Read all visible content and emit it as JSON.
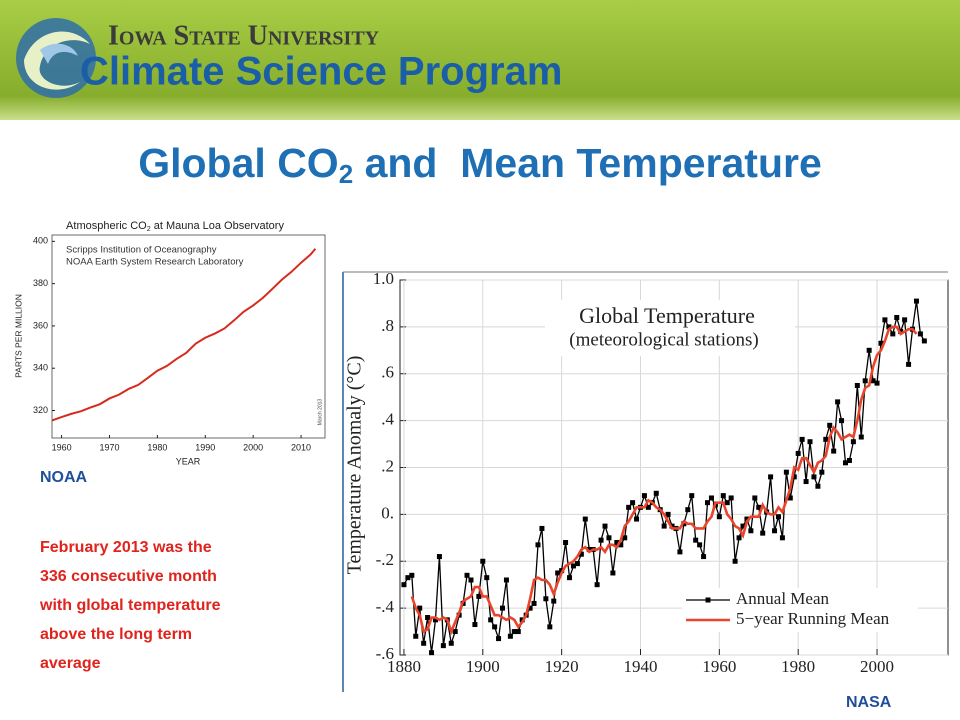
{
  "header": {
    "university": "Iowa State University",
    "program": "Climate Science Program"
  },
  "title": {
    "before": "Global CO",
    "sub": "2",
    "after": " and  Mean Temperature"
  },
  "left_source": "NOAA",
  "note_lines": [
    "February 2013 was the",
    "336 consecutive month",
    "with global temperature",
    "above the long term",
    "average"
  ],
  "right_source": "NASA",
  "chart_data": [
    {
      "type": "line",
      "title": {
        "before": "Atmospheric CO",
        "sub": "2",
        "after": " at Mauna Loa Observatory"
      },
      "sources": [
        "Scripps Institution of Oceanography",
        "NOAA Earth System Research Laboratory"
      ],
      "stamp": "March 2013",
      "x_label": "YEAR",
      "y_label": "PARTS PER MILLION",
      "x": [
        1958,
        1960,
        1962,
        1964,
        1966,
        1968,
        1970,
        1972,
        1974,
        1976,
        1978,
        1980,
        1982,
        1984,
        1986,
        1988,
        1990,
        1992,
        1994,
        1996,
        1998,
        2000,
        2002,
        2004,
        2006,
        2008,
        2010,
        2012,
        2013
      ],
      "values": [
        315.3,
        316.9,
        318.4,
        319.6,
        321.4,
        323.0,
        325.7,
        327.5,
        330.2,
        332.1,
        335.4,
        338.8,
        341.1,
        344.4,
        347.2,
        351.6,
        354.4,
        356.4,
        358.8,
        362.6,
        366.7,
        369.7,
        373.2,
        377.5,
        381.9,
        385.6,
        389.9,
        393.8,
        396.5
      ],
      "color": "#d62a1e",
      "xlim": [
        1958,
        2015
      ],
      "ylim": [
        307,
        403
      ],
      "xticks": [
        1960,
        1970,
        1980,
        1990,
        2000,
        2010
      ],
      "yticks": [
        320,
        340,
        360,
        380,
        400
      ],
      "grid": false
    },
    {
      "type": "line",
      "title": "Global Temperature",
      "subtitle": "(meteorological stations)",
      "y_label": "Temperature Anomaly (°C)",
      "x": [
        1880,
        1881,
        1882,
        1883,
        1884,
        1885,
        1886,
        1887,
        1888,
        1889,
        1890,
        1891,
        1892,
        1893,
        1894,
        1895,
        1896,
        1897,
        1898,
        1899,
        1900,
        1901,
        1902,
        1903,
        1904,
        1905,
        1906,
        1907,
        1908,
        1909,
        1910,
        1911,
        1912,
        1913,
        1914,
        1915,
        1916,
        1917,
        1918,
        1919,
        1920,
        1921,
        1922,
        1923,
        1924,
        1925,
        1926,
        1927,
        1928,
        1929,
        1930,
        1931,
        1932,
        1933,
        1934,
        1935,
        1936,
        1937,
        1938,
        1939,
        1940,
        1941,
        1942,
        1943,
        1944,
        1945,
        1946,
        1947,
        1948,
        1949,
        1950,
        1951,
        1952,
        1953,
        1954,
        1955,
        1956,
        1957,
        1958,
        1959,
        1960,
        1961,
        1962,
        1963,
        1964,
        1965,
        1966,
        1967,
        1968,
        1969,
        1970,
        1971,
        1972,
        1973,
        1974,
        1975,
        1976,
        1977,
        1978,
        1979,
        1980,
        1981,
        1982,
        1983,
        1984,
        1985,
        1986,
        1987,
        1988,
        1989,
        1990,
        1991,
        1992,
        1993,
        1994,
        1995,
        1996,
        1997,
        1998,
        1999,
        2000,
        2001,
        2002,
        2003,
        2004,
        2005,
        2006,
        2007,
        2008,
        2009,
        2010,
        2011,
        2012
      ],
      "series": [
        {
          "name": "Annual Mean",
          "color": "#000000",
          "marker": "square",
          "values": [
            -0.3,
            -0.27,
            -0.26,
            -0.52,
            -0.4,
            -0.55,
            -0.44,
            -0.59,
            -0.45,
            -0.18,
            -0.56,
            -0.45,
            -0.55,
            -0.5,
            -0.43,
            -0.38,
            -0.26,
            -0.28,
            -0.47,
            -0.35,
            -0.2,
            -0.27,
            -0.45,
            -0.48,
            -0.53,
            -0.4,
            -0.28,
            -0.52,
            -0.5,
            -0.5,
            -0.45,
            -0.43,
            -0.4,
            -0.38,
            -0.13,
            -0.06,
            -0.36,
            -0.48,
            -0.37,
            -0.25,
            -0.24,
            -0.12,
            -0.27,
            -0.22,
            -0.21,
            -0.17,
            -0.02,
            -0.15,
            -0.15,
            -0.3,
            -0.11,
            -0.05,
            -0.1,
            -0.25,
            -0.12,
            -0.13,
            -0.1,
            0.03,
            0.05,
            -0.02,
            0.03,
            0.08,
            0.03,
            0.05,
            0.09,
            0.02,
            -0.05,
            0.0,
            -0.05,
            -0.06,
            -0.16,
            -0.04,
            0.02,
            0.08,
            -0.11,
            -0.13,
            -0.18,
            0.05,
            0.07,
            0.04,
            -0.01,
            0.08,
            0.05,
            0.07,
            -0.2,
            -0.1,
            -0.05,
            -0.02,
            -0.07,
            0.07,
            0.03,
            -0.08,
            0.01,
            0.16,
            -0.07,
            -0.01,
            -0.1,
            0.18,
            0.07,
            0.16,
            0.26,
            0.32,
            0.14,
            0.31,
            0.16,
            0.12,
            0.18,
            0.32,
            0.38,
            0.27,
            0.48,
            0.4,
            0.22,
            0.23,
            0.31,
            0.55,
            0.33,
            0.57,
            0.7,
            0.57,
            0.56,
            0.73,
            0.83,
            0.8,
            0.77,
            0.84,
            0.78,
            0.83,
            0.64,
            0.79,
            0.91,
            0.77,
            0.74
          ]
        },
        {
          "name": "5−year Running Mean",
          "color": "#e8452c",
          "marker": "none",
          "values": [
            null,
            null,
            -0.35,
            -0.4,
            -0.43,
            -0.5,
            -0.49,
            -0.44,
            -0.44,
            -0.45,
            -0.44,
            -0.45,
            -0.5,
            -0.46,
            -0.42,
            -0.37,
            -0.36,
            -0.35,
            -0.31,
            -0.31,
            -0.35,
            -0.35,
            -0.39,
            -0.43,
            -0.43,
            -0.44,
            -0.45,
            -0.44,
            -0.45,
            -0.48,
            -0.46,
            -0.43,
            -0.36,
            -0.28,
            -0.27,
            -0.28,
            -0.28,
            -0.3,
            -0.34,
            -0.29,
            -0.25,
            -0.22,
            -0.21,
            -0.2,
            -0.18,
            -0.15,
            -0.14,
            -0.16,
            -0.15,
            -0.15,
            -0.14,
            -0.16,
            -0.13,
            -0.13,
            -0.14,
            -0.11,
            -0.05,
            -0.03,
            0.0,
            0.03,
            0.03,
            0.03,
            0.06,
            0.05,
            0.03,
            0.02,
            0.0,
            -0.03,
            -0.06,
            -0.06,
            -0.06,
            -0.03,
            -0.04,
            -0.04,
            -0.06,
            -0.06,
            -0.06,
            -0.03,
            -0.01,
            0.05,
            0.05,
            0.05,
            0.0,
            -0.02,
            -0.05,
            -0.06,
            -0.09,
            -0.03,
            -0.01,
            -0.01,
            -0.01,
            0.04,
            0.01,
            0.0,
            0.0,
            0.03,
            0.01,
            0.06,
            0.11,
            0.2,
            0.19,
            0.24,
            0.24,
            0.21,
            0.18,
            0.22,
            0.23,
            0.25,
            0.33,
            0.37,
            0.35,
            0.32,
            0.33,
            0.34,
            0.33,
            0.4,
            0.49,
            0.54,
            0.55,
            0.63,
            0.68,
            0.7,
            0.74,
            0.79,
            0.8,
            0.8,
            0.77,
            0.78,
            0.79,
            0.79,
            0.77,
            null,
            null
          ]
        }
      ],
      "xlim": [
        1879,
        2018
      ],
      "ylim": [
        -0.6,
        1.0
      ],
      "xticks": [
        1880,
        1900,
        1920,
        1940,
        1960,
        1980,
        2000
      ],
      "yticks": [
        {
          "value": 1.0,
          "label": "1.0"
        },
        {
          "value": 0.8,
          "label": ".8"
        },
        {
          "value": 0.6,
          "label": ".6"
        },
        {
          "value": 0.4,
          "label": ".4"
        },
        {
          "value": 0.2,
          "label": ".2"
        },
        {
          "value": 0,
          "label": "0."
        },
        {
          "value": -0.2,
          "label": "-.2"
        },
        {
          "value": -0.4,
          "label": "-.4"
        },
        {
          "value": -0.6,
          "label": "-.6"
        }
      ],
      "grid": true,
      "legend": "lower right"
    }
  ]
}
